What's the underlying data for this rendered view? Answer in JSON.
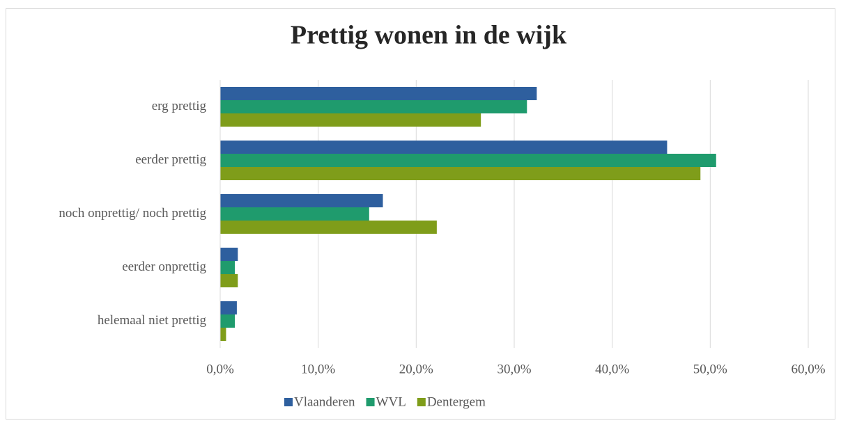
{
  "chart_data": {
    "type": "bar",
    "orientation": "horizontal",
    "title": "Prettig wonen in de wijk",
    "categories": [
      "erg prettig",
      "eerder prettig",
      "noch onprettig/ noch prettig",
      "eerder onprettig",
      "helemaal niet prettig"
    ],
    "series": [
      {
        "name": "Vlaanderen",
        "color": "#2e5f9e",
        "values": [
          32.3,
          45.6,
          16.6,
          1.8,
          1.7
        ]
      },
      {
        "name": "WVL",
        "color": "#1f9b6d",
        "values": [
          31.3,
          50.6,
          15.2,
          1.5,
          1.5
        ]
      },
      {
        "name": "Dentergem",
        "color": "#7f9d1a",
        "values": [
          26.6,
          49.0,
          22.1,
          1.8,
          0.6
        ]
      }
    ],
    "xlim": [
      0,
      60
    ],
    "xticks": [
      {
        "value": 0,
        "label": "0,0%"
      },
      {
        "value": 10,
        "label": "10,0%"
      },
      {
        "value": 20,
        "label": "20,0%"
      },
      {
        "value": 30,
        "label": "30,0%"
      },
      {
        "value": 40,
        "label": "40,0%"
      },
      {
        "value": 50,
        "label": "50,0%"
      },
      {
        "value": 60,
        "label": "60,0%"
      }
    ],
    "grid": true,
    "legend": "bottom"
  }
}
